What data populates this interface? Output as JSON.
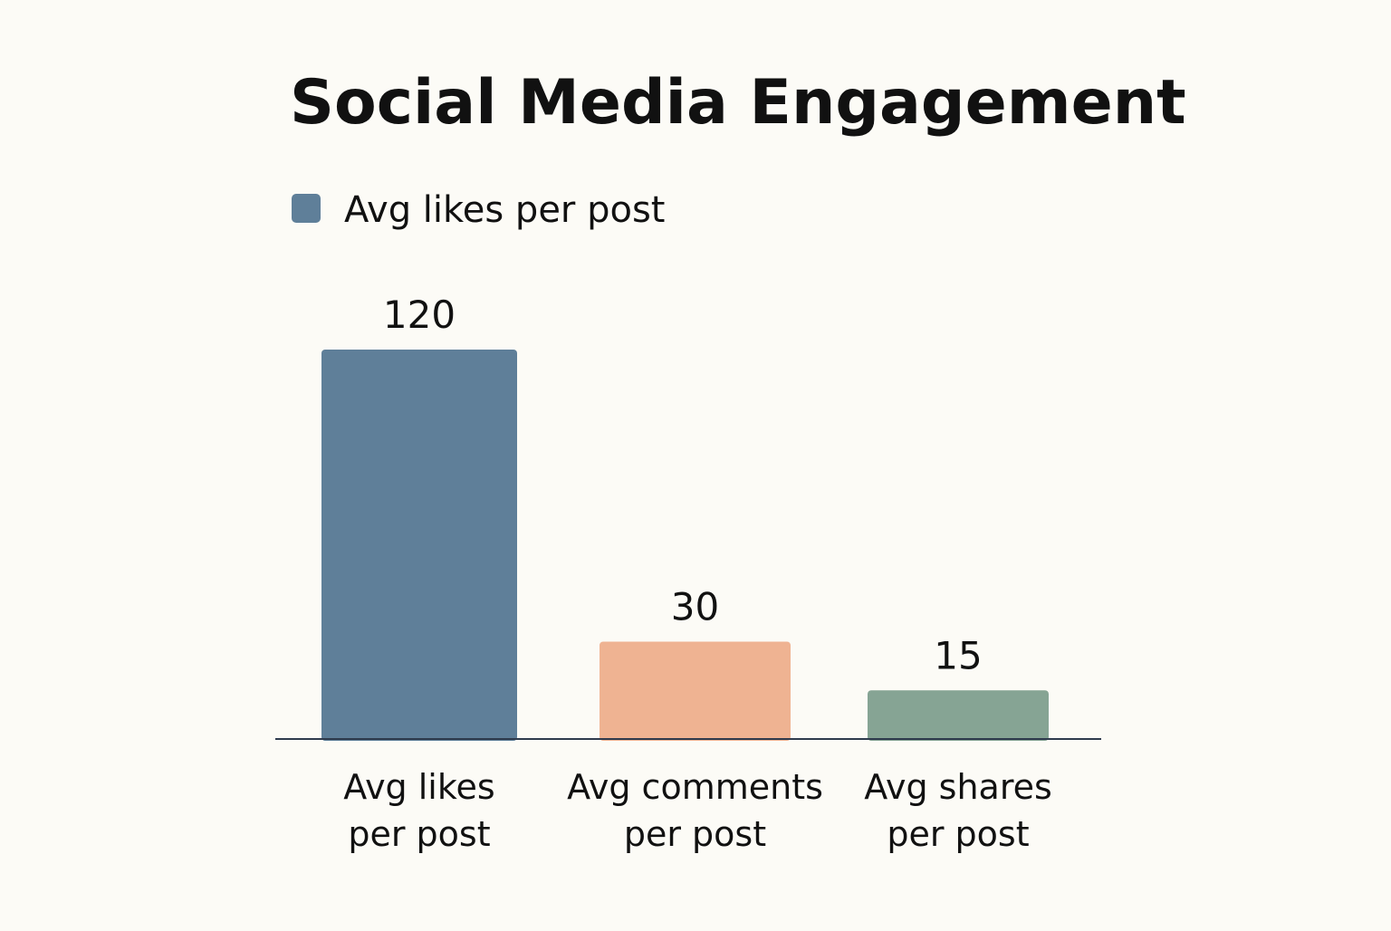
{
  "chart_data": {
    "type": "bar",
    "title": "Social Media Engagement",
    "legend": {
      "placement": "top-left",
      "entries": [
        {
          "label": "Avg likes per post",
          "color": "#5f7f99"
        }
      ]
    },
    "categories": [
      [
        "Avg likes",
        "per post"
      ],
      [
        "Avg comments",
        "per post"
      ],
      [
        "Avg shares",
        "per post"
      ]
    ],
    "values": [
      120,
      30,
      15
    ],
    "data_labels": [
      "120",
      "30",
      "15"
    ],
    "colors": [
      "#5f7f99",
      "#efb392",
      "#86a494"
    ],
    "xlabel": "",
    "ylabel": "",
    "grid": false
  }
}
